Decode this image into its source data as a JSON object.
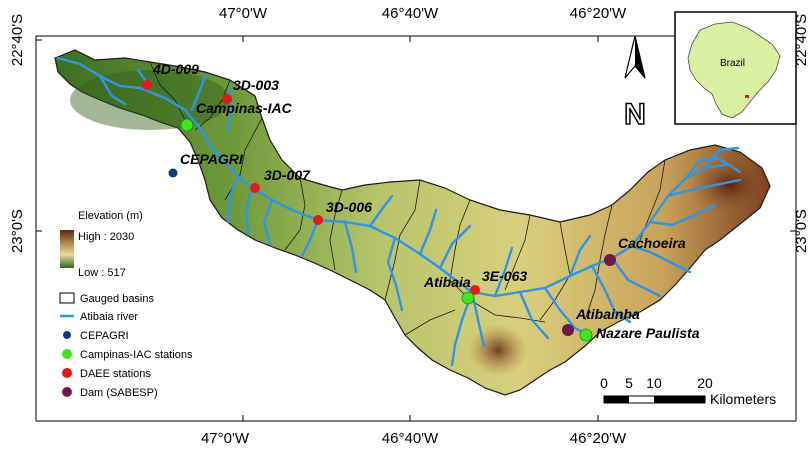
{
  "axes": {
    "top_ticks": [],
    "bottom_ticks": [
      "47°0'W",
      "46°40'W",
      "46°20'W"
    ],
    "left_ticks": [
      "22°40'S",
      "23°0'S"
    ]
  },
  "stations": [
    {
      "name": "4D-009",
      "type": "DAEE stations"
    },
    {
      "name": "3D-003",
      "type": "DAEE stations"
    },
    {
      "name": "Campinas-IAC",
      "type": "Campinas-IAC stations"
    },
    {
      "name": "CEPAGRI",
      "type": "CEPAGRI"
    },
    {
      "name": "3D-007",
      "type": "DAEE stations"
    },
    {
      "name": "3D-006",
      "type": "DAEE stations"
    },
    {
      "name": "3E-063",
      "type": "DAEE stations"
    },
    {
      "name": "Atibaia",
      "type": "Campinas-IAC stations"
    },
    {
      "name": "Cachoeira",
      "type": "Dam (SABESP)"
    },
    {
      "name": "Atibainha",
      "type": "Dam (SABESP)"
    },
    {
      "name": "Nazare Paulista",
      "type": "Campinas-IAC stations"
    }
  ],
  "elevation_legend": {
    "title": "Elevation (m)",
    "high": "High : 2030",
    "low": "Low : 517",
    "colors": [
      "#5a2a14",
      "#b08a4a",
      "#e8dc9a",
      "#2f6b1e"
    ]
  },
  "legend": {
    "items": [
      {
        "label": "Gauged basins",
        "symbol": "box",
        "color": "#000000"
      },
      {
        "label": "Atibaia river",
        "symbol": "line",
        "color": "#2f95e6"
      },
      {
        "label": "CEPAGRI",
        "symbol": "dot",
        "color": "#123a7a"
      },
      {
        "label": "Campinas-IAC stations",
        "symbol": "dot",
        "color": "#3fe61f"
      },
      {
        "label": "DAEE stations",
        "symbol": "dot",
        "color": "#e31a1c"
      },
      {
        "label": "Dam (SABESP)",
        "symbol": "dot",
        "color": "#6b1a4a"
      }
    ]
  },
  "scale_bar": {
    "labels": [
      "0",
      "5",
      "10",
      "20"
    ],
    "unit": "Kilometers"
  },
  "north_arrow": {
    "letter": "N"
  },
  "inset": {
    "country_label": "Brazil",
    "country_color": "#d9f0a3",
    "marker_color": "#e31a1c"
  },
  "colors": {
    "river": "#2f95e6"
  }
}
